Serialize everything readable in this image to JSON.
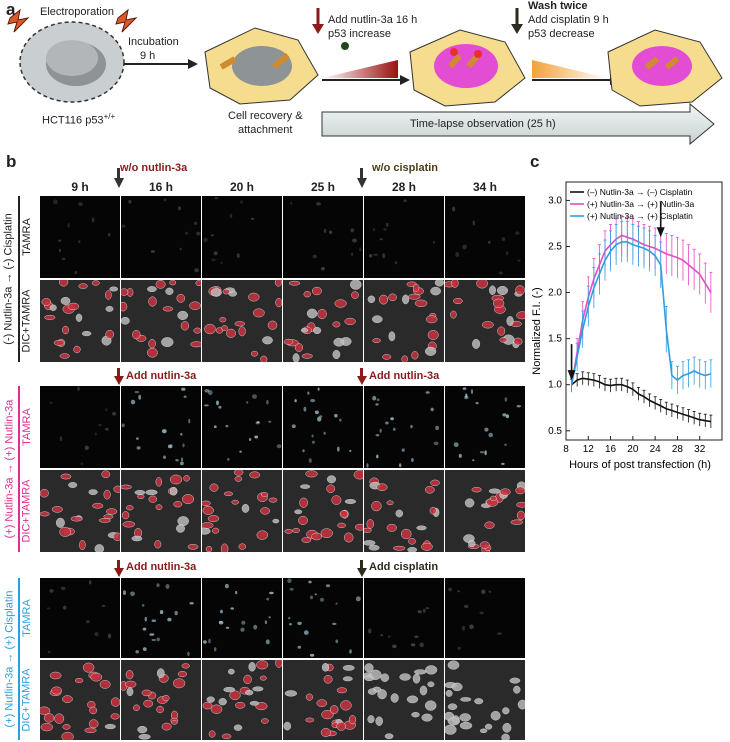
{
  "panel_a": {
    "label": "a",
    "electroporation": "Electroporation",
    "cell_line": "HCT116 p53",
    "cell_line_sup": "+/+",
    "incubation": "Incubation",
    "incubation_time": "9 h",
    "recovery_line1": "Cell recovery &",
    "recovery_line2": "attachment",
    "nutlin_line1": "Add nutlin-3a 16 h",
    "nutlin_line2": "p53 increase",
    "wash": "Wash twice",
    "cisplatin_line1": "Add cisplatin 9 h",
    "cisplatin_line2": "p53 decrease",
    "timelapse": "Time-lapse observation (25 h)",
    "colors": {
      "cell": "#f6dc8e",
      "nucleus": "#a9a9a9",
      "pink_nucleus": "#e34dd4",
      "red_arrow": "#8b1a1a",
      "dark_arrow": "#2f2a1e"
    }
  },
  "panel_b": {
    "label": "b",
    "timepoints": [
      "9 h",
      "16 h",
      "20 h",
      "25 h",
      "28 h",
      "34 h"
    ],
    "groups": [
      {
        "side": "(-) Nutlin-3a → (-) Cisplatin",
        "color": "#222222",
        "ann1": "w/o nutlin-3a",
        "ann1_color": "#8b1a1a",
        "ann2": "w/o cisplatin",
        "ann2_color": "#4a3d1a",
        "rows": [
          "TAMRA",
          "DIC+TAMRA"
        ]
      },
      {
        "side": "(+) Nutlin-3a → (+) Nutlin-3a",
        "color": "#e0308f",
        "ann1": "Add nutlin-3a",
        "ann1_color": "#8b1a1a",
        "ann2": "Add nutlin-3a",
        "ann2_color": "#8b1a1a",
        "rows": [
          "TAMRA",
          "DIC+TAMRA"
        ]
      },
      {
        "side": "(+) Nutlin-3a → (+) Cisplatin",
        "color": "#2a9fe0",
        "ann1": "Add nutlin-3a",
        "ann1_color": "#8b1a1a",
        "ann2": "Add cisplatin",
        "ann2_color": "#2f2a1e",
        "rows": [
          "TAMRA",
          "DIC+TAMRA"
        ]
      }
    ]
  },
  "panel_c": {
    "label": "c"
  },
  "chart_data": {
    "type": "line",
    "xlabel": "Hours of post transfection (h)",
    "ylabel": "Normalized F.I. (-)",
    "xlim": [
      8,
      36
    ],
    "ylim": [
      0.4,
      3.2
    ],
    "xticks": [
      8,
      12,
      16,
      20,
      24,
      28,
      32
    ],
    "yticks": [
      0.5,
      1.0,
      1.5,
      2.0,
      2.5,
      3.0
    ],
    "legend": "top",
    "arrows_at_x": [
      9,
      25
    ],
    "x": [
      9,
      10,
      11,
      12,
      13,
      14,
      15,
      16,
      17,
      18,
      19,
      20,
      21,
      22,
      23,
      24,
      25,
      26,
      27,
      28,
      29,
      30,
      31,
      32,
      33,
      34
    ],
    "series": [
      {
        "name": "(–) Nutlin-3a → (–) Cisplatin",
        "color": "#111111",
        "values": [
          1.0,
          1.05,
          1.07,
          1.06,
          1.05,
          1.03,
          1.0,
          0.99,
          1.0,
          1.0,
          0.98,
          0.95,
          0.9,
          0.87,
          0.83,
          0.8,
          0.77,
          0.74,
          0.72,
          0.7,
          0.68,
          0.66,
          0.64,
          0.62,
          0.61,
          0.6
        ],
        "err": [
          0.06,
          0.07,
          0.07,
          0.07,
          0.07,
          0.07,
          0.07,
          0.07,
          0.07,
          0.07,
          0.07,
          0.07,
          0.07,
          0.07,
          0.07,
          0.07,
          0.07,
          0.07,
          0.07,
          0.07,
          0.07,
          0.07,
          0.07,
          0.07,
          0.07,
          0.07
        ]
      },
      {
        "name": "(+) Nutlin-3a → (+) Nutlin-3a",
        "color": "#e64bc4",
        "values": [
          1.0,
          1.35,
          1.7,
          1.95,
          2.15,
          2.3,
          2.45,
          2.52,
          2.58,
          2.62,
          2.6,
          2.58,
          2.55,
          2.52,
          2.5,
          2.48,
          2.45,
          2.42,
          2.4,
          2.38,
          2.35,
          2.3,
          2.25,
          2.2,
          2.1,
          2.0
        ],
        "err": [
          0.08,
          0.15,
          0.2,
          0.22,
          0.22,
          0.22,
          0.22,
          0.22,
          0.22,
          0.22,
          0.22,
          0.22,
          0.22,
          0.22,
          0.22,
          0.22,
          0.22,
          0.22,
          0.22,
          0.22,
          0.22,
          0.22,
          0.22,
          0.22,
          0.22,
          0.22
        ]
      },
      {
        "name": "(+) Nutlin-3a → (+) Cisplatin",
        "color": "#2f9ee0",
        "values": [
          1.0,
          1.3,
          1.6,
          1.85,
          2.05,
          2.2,
          2.35,
          2.45,
          2.52,
          2.55,
          2.55,
          2.52,
          2.5,
          2.48,
          2.45,
          2.4,
          2.3,
          1.6,
          1.1,
          1.05,
          1.1,
          1.12,
          1.15,
          1.12,
          1.1,
          1.12
        ],
        "err": [
          0.08,
          0.15,
          0.2,
          0.22,
          0.22,
          0.22,
          0.22,
          0.22,
          0.22,
          0.22,
          0.22,
          0.22,
          0.22,
          0.22,
          0.22,
          0.22,
          0.25,
          0.25,
          0.15,
          0.15,
          0.15,
          0.15,
          0.15,
          0.15,
          0.15,
          0.15
        ]
      }
    ]
  }
}
